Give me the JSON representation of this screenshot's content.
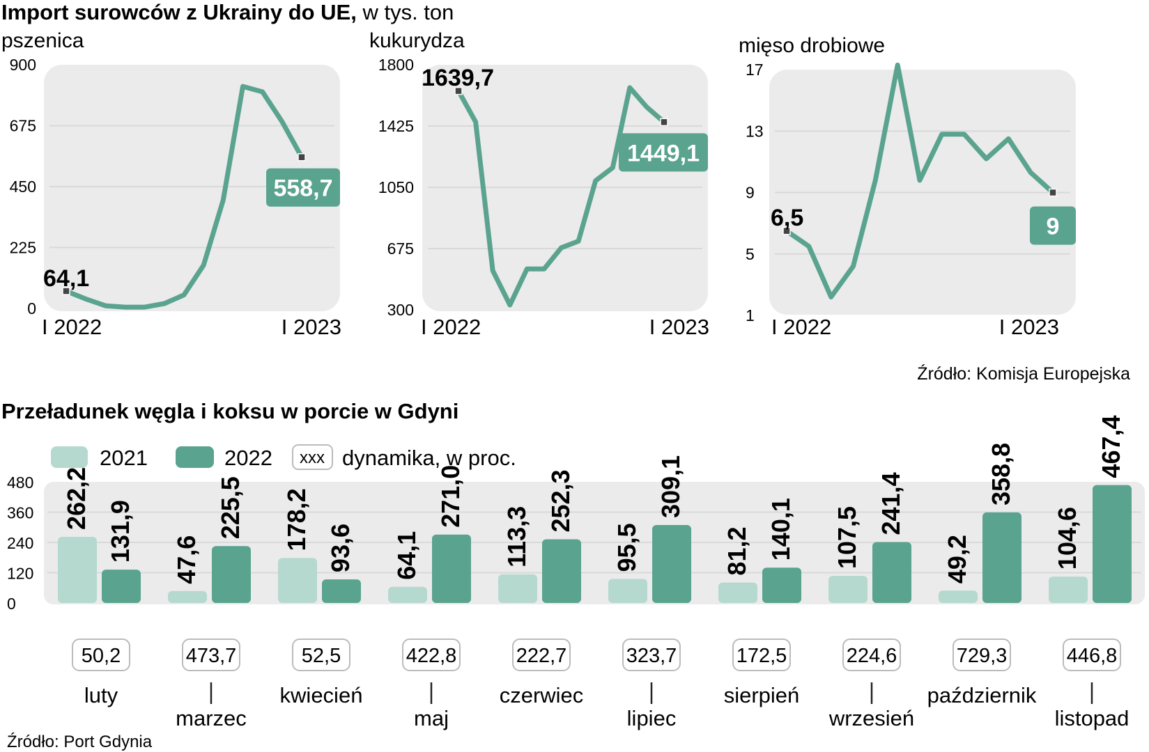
{
  "colors": {
    "line": "#5aa38f",
    "bar2021": "#b5d9cf",
    "bar2022": "#5aa38f",
    "panel": "#ebebeb",
    "grid": "#d9d9d9",
    "text": "#111111"
  },
  "top": {
    "title_bold": "Import surowców z Ukrainy do UE,",
    "title_unit": " w tys. ton",
    "source": "Źródło: Komisja Europejska"
  },
  "bottom": {
    "title": "Przeładunek węgla i koksu w porcie w Gdyni",
    "source": "Źródło: Port Gdynia",
    "legend": {
      "y2021": "2021",
      "y2022": "2022",
      "dyn_box": "xxx",
      "dyn_label": "dynamika, w proc."
    }
  },
  "chart_data": [
    {
      "type": "line",
      "title": "pszenica",
      "ylim": [
        0,
        900
      ],
      "yticks": [
        "0",
        "225",
        "450",
        "675",
        "900"
      ],
      "xticks": [
        "I 2022",
        "I 2023"
      ],
      "values": [
        64.1,
        35,
        10,
        5,
        5,
        18,
        50,
        160,
        400,
        820,
        800,
        690,
        558.7
      ],
      "start_label": "64,1",
      "end_label": "558,7"
    },
    {
      "type": "line",
      "title": "kukurydza",
      "ylim": [
        300,
        1800
      ],
      "yticks": [
        "300",
        "675",
        "1050",
        "1425",
        "1800"
      ],
      "xticks": [
        "I 2022",
        "I 2023"
      ],
      "values": [
        1639.7,
        1450,
        540,
        330,
        550,
        550,
        680,
        720,
        1090,
        1170,
        1660,
        1540,
        1449.1
      ],
      "start_label": "1639,7",
      "end_label": "1449,1"
    },
    {
      "type": "line",
      "title": "mięso drobiowe",
      "ylim": [
        1,
        17
      ],
      "yticks": [
        "1",
        "5",
        "9",
        "13",
        "17"
      ],
      "xticks": [
        "I 2022",
        "I 2023"
      ],
      "values": [
        6.5,
        5.5,
        2.2,
        4.2,
        9.8,
        17.3,
        9.8,
        12.8,
        12.8,
        11.2,
        12.5,
        10.3,
        9
      ],
      "start_label": "6,5",
      "end_label": "9"
    },
    {
      "type": "bar",
      "title": "Przeładunek węgla i koksu w porcie w Gdyni",
      "ylim": [
        0,
        480
      ],
      "yticks": [
        "0",
        "120",
        "240",
        "360",
        "480"
      ],
      "categories": [
        "luty",
        "marzec",
        "kwiecień",
        "maj",
        "czerwiec",
        "lipiec",
        "sierpień",
        "wrzesień",
        "październik",
        "listopad"
      ],
      "series": [
        {
          "name": "2021",
          "values": [
            262.2,
            47.6,
            178.2,
            64.1,
            113.3,
            95.5,
            81.2,
            107.5,
            49.2,
            104.6
          ],
          "labels": [
            "262,2",
            "47,6",
            "178,2",
            "64,1",
            "113,3",
            "95,5",
            "81,2",
            "107,5",
            "49,2",
            "104,6"
          ]
        },
        {
          "name": "2022",
          "values": [
            131.9,
            225.5,
            93.6,
            271.0,
            252.3,
            309.1,
            140.1,
            241.4,
            358.8,
            467.4
          ],
          "labels": [
            "131,9",
            "225,5",
            "93,6",
            "271,0",
            "252,3",
            "309,1",
            "140,1",
            "241,4",
            "358,8",
            "467,4"
          ]
        }
      ],
      "dynamics": [
        50.2,
        473.7,
        52.5,
        422.8,
        222.7,
        323.7,
        172.5,
        224.6,
        729.3,
        446.8
      ],
      "dynamics_labels": [
        "50,2",
        "473,7",
        "52,5",
        "422,8",
        "222,7",
        "323,7",
        "172,5",
        "224,6",
        "729,3",
        "446,8"
      ]
    }
  ]
}
